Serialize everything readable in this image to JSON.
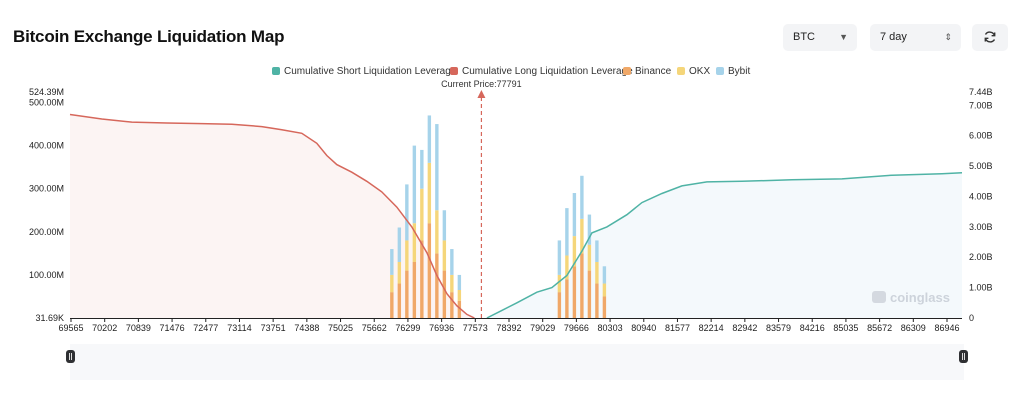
{
  "header": {
    "title": "Bitcoin Exchange Liquidation Map"
  },
  "controls": {
    "coin": {
      "value": "BTC",
      "icon": "chevron-down-icon"
    },
    "period": {
      "value": "7 day",
      "icon": "up-down-chevron-icon"
    },
    "refresh_icon": "refresh-icon"
  },
  "watermark": "coinglass",
  "chart_data": {
    "type": "bar",
    "current_price": 77791,
    "current_price_label": "Current Price:77791",
    "legend": [
      {
        "name": "Cumulative Short Liquidation Leverage",
        "color": "#4fb3a5"
      },
      {
        "name": "Cumulative Long Liquidation Leverage",
        "color": "#d6675b"
      },
      {
        "name": "Binance",
        "color": "#f0a868"
      },
      {
        "name": "OKX",
        "color": "#f5d67a"
      },
      {
        "name": "Bybit",
        "color": "#a6d3ea"
      }
    ],
    "x_ticks": [
      "69565",
      "70202",
      "70839",
      "71476",
      "72477",
      "73114",
      "73751",
      "74388",
      "75025",
      "75662",
      "76299",
      "76936",
      "77573",
      "78392",
      "79029",
      "79666",
      "80303",
      "80940",
      "81577",
      "82214",
      "82942",
      "83579",
      "84216",
      "85035",
      "85672",
      "86309",
      "86946"
    ],
    "xlim": [
      69565,
      87400
    ],
    "y_left": {
      "ticks": [
        "31.69K",
        "100.00M",
        "200.00M",
        "300.00M",
        "400.00M",
        "500.00M",
        "524.39M"
      ],
      "ylim": [
        31690,
        524390000
      ]
    },
    "y_right": {
      "ticks": [
        "0",
        "1.00B",
        "2.00B",
        "3.00B",
        "4.00B",
        "5.00B",
        "6.00B",
        "7.00B",
        "7.44B"
      ],
      "ylim": [
        0,
        7440000000
      ]
    },
    "long_cumulative": {
      "x": [
        69565,
        70200,
        70800,
        71500,
        72200,
        72800,
        73400,
        73800,
        74200,
        74500,
        74700,
        74900,
        75200,
        75500,
        75800,
        76100,
        76400,
        76700,
        76900,
        77100,
        77300,
        77500,
        77650
      ],
      "y": [
        6700000000,
        6550000000,
        6450000000,
        6420000000,
        6400000000,
        6380000000,
        6300000000,
        6200000000,
        6080000000,
        5750000000,
        5350000000,
        5050000000,
        4800000000,
        4500000000,
        4150000000,
        3650000000,
        3000000000,
        2150000000,
        1400000000,
        800000000,
        400000000,
        120000000,
        0
      ]
    },
    "short_cumulative": {
      "x": [
        77900,
        78200,
        78500,
        78900,
        79200,
        79500,
        79800,
        80000,
        80300,
        80700,
        81000,
        81400,
        81800,
        82300,
        83000,
        84000,
        85000,
        86000,
        87000,
        87400
      ],
      "y": [
        0,
        250000000,
        500000000,
        850000000,
        1000000000,
        1400000000,
        2200000000,
        2800000000,
        3000000000,
        3400000000,
        3800000000,
        4100000000,
        4350000000,
        4480000000,
        4500000000,
        4550000000,
        4580000000,
        4700000000,
        4750000000,
        4780000000
      ]
    },
    "bars": {
      "x": [
        76000,
        76150,
        76300,
        76450,
        76600,
        76750,
        76900,
        77050,
        77200,
        77350,
        79350,
        79500,
        79650,
        79800,
        79950,
        80100,
        80250
      ],
      "binance": [
        60000000,
        80000000,
        110000000,
        130000000,
        180000000,
        220000000,
        150000000,
        110000000,
        60000000,
        40000000,
        60000000,
        90000000,
        120000000,
        150000000,
        110000000,
        80000000,
        50000000
      ],
      "okx": [
        40000000,
        50000000,
        70000000,
        90000000,
        120000000,
        140000000,
        100000000,
        70000000,
        40000000,
        25000000,
        40000000,
        55000000,
        70000000,
        80000000,
        60000000,
        50000000,
        30000000
      ],
      "bybit": [
        60000000,
        80000000,
        130000000,
        180000000,
        90000000,
        110000000,
        200000000,
        70000000,
        60000000,
        35000000,
        80000000,
        110000000,
        100000000,
        100000000,
        70000000,
        50000000,
        40000000
      ]
    }
  }
}
